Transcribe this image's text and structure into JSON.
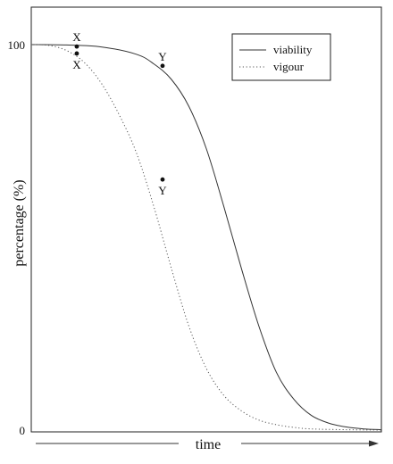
{
  "chart_data": {
    "type": "line",
    "title": "",
    "xlabel": "time",
    "ylabel": "percentage (%)",
    "ylim": [
      0,
      100
    ],
    "xlim": [
      0,
      100
    ],
    "y_ticks": [
      "100",
      "0"
    ],
    "grid": false,
    "legend_position": "top-right",
    "x_axis_arrow": true,
    "series": [
      {
        "name": "viability",
        "style": "solid",
        "color": "#333333",
        "x": [
          0,
          10,
          20,
          30,
          35,
          40,
          45,
          50,
          55,
          60,
          65,
          70,
          75,
          80,
          85,
          90,
          95,
          100
        ],
        "y": [
          100,
          99.9,
          99.4,
          97.5,
          95,
          91,
          84,
          73,
          58,
          42,
          27,
          15,
          8,
          3.8,
          1.8,
          0.8,
          0.3,
          0.1
        ]
      },
      {
        "name": "vigour",
        "style": "dotted",
        "color": "#555555",
        "x": [
          0,
          5,
          10,
          15,
          20,
          25,
          30,
          35,
          40,
          45,
          50,
          55,
          60,
          65,
          70,
          75,
          80,
          90,
          100
        ],
        "y": [
          100,
          99.8,
          98.5,
          95.5,
          90,
          82,
          72,
          58,
          42,
          27,
          16,
          9,
          5,
          2.6,
          1.4,
          0.7,
          0.3,
          0.1,
          0
        ]
      }
    ],
    "annotations": [
      {
        "label": "X",
        "series": "viability",
        "x": 13,
        "y": 99.5,
        "label_position": "above"
      },
      {
        "label": "X",
        "series": "vigour",
        "x": 13,
        "y": 97.7,
        "label_position": "below"
      },
      {
        "label": "Y",
        "series": "viability",
        "x": 37.5,
        "y": 94.5,
        "label_position": "above"
      },
      {
        "label": "Y",
        "series": "vigour",
        "x": 37.5,
        "y": 65,
        "label_position": "below"
      }
    ]
  }
}
